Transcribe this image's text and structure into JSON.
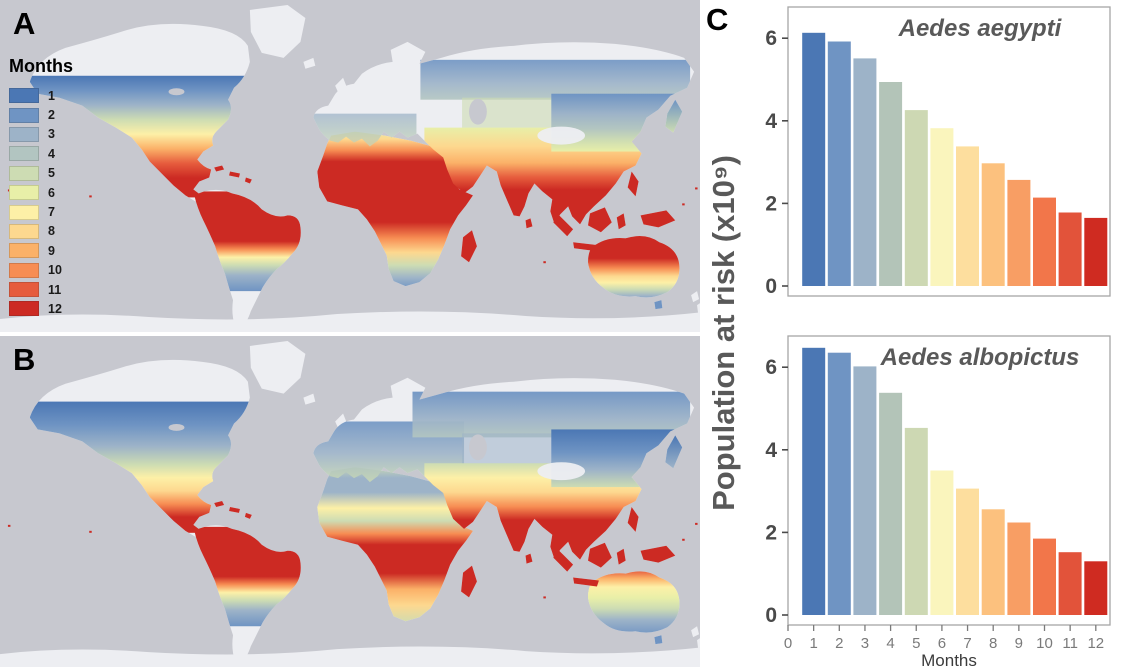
{
  "panels": {
    "a": "A",
    "b": "B",
    "c": "C"
  },
  "legend": {
    "title": "Months",
    "entries": [
      {
        "label": "1",
        "color": "#4b77b4"
      },
      {
        "label": "2",
        "color": "#6f94c3"
      },
      {
        "label": "3",
        "color": "#9db3c8"
      },
      {
        "label": "4",
        "color": "#b2c5c1"
      },
      {
        "label": "5",
        "color": "#cddcb3"
      },
      {
        "label": "6",
        "color": "#e8efa8"
      },
      {
        "label": "7",
        "color": "#fdf0a7"
      },
      {
        "label": "8",
        "color": "#fdd88f"
      },
      {
        "label": "9",
        "color": "#fbb168"
      },
      {
        "label": "10",
        "color": "#f78d53"
      },
      {
        "label": "11",
        "color": "#e65c3d"
      },
      {
        "label": "12",
        "color": "#cc2a23"
      }
    ]
  },
  "map_colors": {
    "ocean": "#c7c8cf",
    "land": "#edeef2"
  },
  "charts": {
    "shared_ylabel": "Population at risk (x10⁹)",
    "xlabel": "Months",
    "bar_palette": [
      "#4b77b4",
      "#6f94c3",
      "#9db3c8",
      "#b3c4b8",
      "#cdd8b3",
      "#faf5bd",
      "#fdde9e",
      "#fcc17e",
      "#f89e64",
      "#f2764a",
      "#e2533a",
      "#cf2b21"
    ]
  },
  "chart_data": [
    {
      "type": "bar",
      "title": "Aedes aegypti",
      "xlabel": "",
      "ylabel": "Population at risk (x10⁹)",
      "categories": [
        1,
        2,
        3,
        4,
        5,
        6,
        7,
        8,
        9,
        10,
        11,
        12
      ],
      "values": [
        6.13,
        5.92,
        5.51,
        4.94,
        4.26,
        3.82,
        3.38,
        2.97,
        2.57,
        2.14,
        1.78,
        1.65
      ],
      "ylim": [
        0,
        6.9
      ],
      "yticks": [
        0,
        2,
        4,
        6
      ],
      "show_xticklabels": false
    },
    {
      "type": "bar",
      "title": "Aedes albopictus",
      "xlabel": "Months",
      "ylabel": "Population at risk (x10⁹)",
      "categories": [
        1,
        2,
        3,
        4,
        5,
        6,
        7,
        8,
        9,
        10,
        11,
        12
      ],
      "values": [
        6.47,
        6.35,
        6.02,
        5.38,
        4.53,
        3.5,
        3.06,
        2.56,
        2.24,
        1.85,
        1.52,
        1.3
      ],
      "ylim": [
        0,
        6.9
      ],
      "yticks": [
        0,
        2,
        4,
        6
      ],
      "xticks": [
        0,
        1,
        2,
        3,
        4,
        5,
        6,
        7,
        8,
        9,
        10,
        11,
        12
      ],
      "show_xticklabels": true
    }
  ]
}
